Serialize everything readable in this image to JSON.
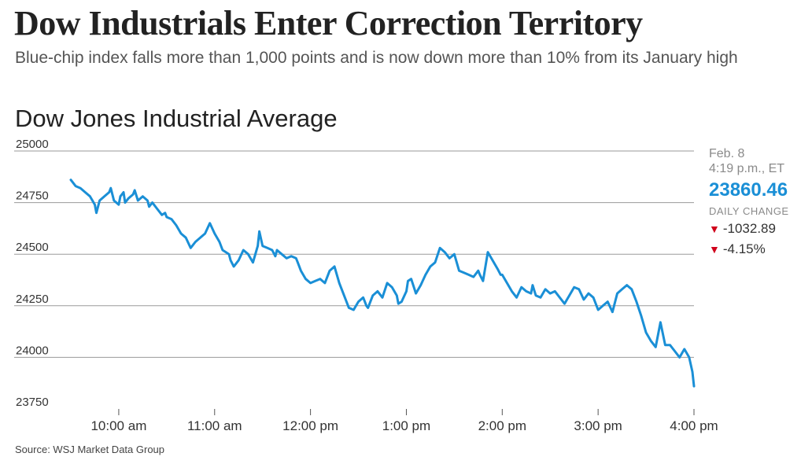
{
  "headline": "Dow Industrials Enter Correction Territory",
  "dek": "Blue-chip index falls more than 1,000 points and is now down more than 10% from its January high",
  "source": "Source: WSJ Market Data Group",
  "info_panel": {
    "date": "Feb. 8",
    "time": "4:19 p.m., ET",
    "price": "23860.46",
    "change_label": "DAILY CHANGE",
    "change_points": "-1032.89",
    "change_percent": "-4.15%"
  },
  "colors": {
    "line": "#1a8fd6",
    "down": "#d0021b"
  },
  "chart_data": {
    "type": "line",
    "title": "Dow Jones Industrial Average",
    "xlabel": "",
    "ylabel": "",
    "x_unit": "minutes after 9:30 a.m. ET",
    "xlim": [
      0,
      390
    ],
    "ylim": [
      23750,
      25000
    ],
    "yticks": [
      25000,
      24750,
      24500,
      24250,
      24000,
      23750
    ],
    "ytick_labels": [
      "25000",
      "24750",
      "24500",
      "24250",
      "24000",
      "23750"
    ],
    "xticks": [
      30,
      90,
      150,
      210,
      270,
      330,
      390
    ],
    "xtick_labels": [
      "10:00 am",
      "11:00 am",
      "12:00 pm",
      "1:00 pm",
      "2:00 pm",
      "3:00 pm",
      "4:00 pm"
    ],
    "grid": true,
    "series": [
      {
        "name": "Dow Jones Industrial Average",
        "x": [
          0,
          3,
          6,
          9,
          12,
          15,
          16,
          18,
          21,
          24,
          25,
          27,
          30,
          31,
          33,
          34,
          36,
          39,
          40,
          42,
          45,
          48,
          49,
          51,
          54,
          57,
          59,
          60,
          63,
          66,
          69,
          72,
          75,
          78,
          81,
          84,
          87,
          90,
          93,
          95,
          97,
          99,
          100,
          102,
          105,
          108,
          111,
          114,
          117,
          118,
          120,
          123,
          126,
          128,
          129,
          132,
          135,
          138,
          141,
          142,
          144,
          147,
          150,
          153,
          156,
          159,
          162,
          165,
          168,
          171,
          174,
          177,
          180,
          183,
          185,
          186,
          189,
          192,
          195,
          198,
          201,
          204,
          205,
          207,
          210,
          211,
          213,
          216,
          219,
          222,
          225,
          228,
          231,
          234,
          237,
          240,
          243,
          246,
          249,
          252,
          255,
          256,
          258,
          261,
          264,
          267,
          269,
          270,
          273,
          276,
          279,
          282,
          285,
          288,
          289,
          291,
          294,
          297,
          300,
          303,
          306,
          309,
          312,
          315,
          318,
          321,
          324,
          327,
          330,
          333,
          336,
          339,
          342,
          345,
          348,
          351,
          354,
          357,
          360,
          363,
          366,
          369,
          372,
          375,
          378,
          381,
          384,
          387,
          389,
          390
        ],
        "y": [
          24860,
          24830,
          24820,
          24800,
          24780,
          24740,
          24700,
          24760,
          24780,
          24800,
          24820,
          24760,
          24740,
          24780,
          24800,
          24750,
          24770,
          24790,
          24810,
          24760,
          24780,
          24760,
          24730,
          24750,
          24720,
          24690,
          24700,
          24680,
          24670,
          24640,
          24600,
          24580,
          24530,
          24560,
          24580,
          24600,
          24650,
          24600,
          24560,
          24520,
          24510,
          24500,
          24470,
          24440,
          24470,
          24520,
          24500,
          24460,
          24540,
          24610,
          24540,
          24530,
          24520,
          24490,
          24520,
          24500,
          24480,
          24490,
          24480,
          24460,
          24420,
          24380,
          24360,
          24370,
          24380,
          24360,
          24420,
          24440,
          24360,
          24300,
          24240,
          24230,
          24270,
          24290,
          24250,
          24240,
          24300,
          24320,
          24290,
          24360,
          24340,
          24300,
          24260,
          24270,
          24320,
          24370,
          24380,
          24310,
          24350,
          24400,
          24440,
          24460,
          24530,
          24510,
          24480,
          24500,
          24420,
          24410,
          24400,
          24390,
          24420,
          24400,
          24370,
          24510,
          24470,
          24430,
          24400,
          24400,
          24360,
          24320,
          24290,
          24340,
          24320,
          24310,
          24350,
          24300,
          24290,
          24330,
          24310,
          24320,
          24290,
          24260,
          24300,
          24340,
          24330,
          24280,
          24310,
          24290,
          24230,
          24250,
          24270,
          24220,
          24310,
          24330,
          24350,
          24330,
          24270,
          24200,
          24120,
          24080,
          24050,
          24170,
          24060,
          24060,
          24030,
          24000,
          24040,
          24000,
          23930,
          23860
        ]
      }
    ]
  }
}
